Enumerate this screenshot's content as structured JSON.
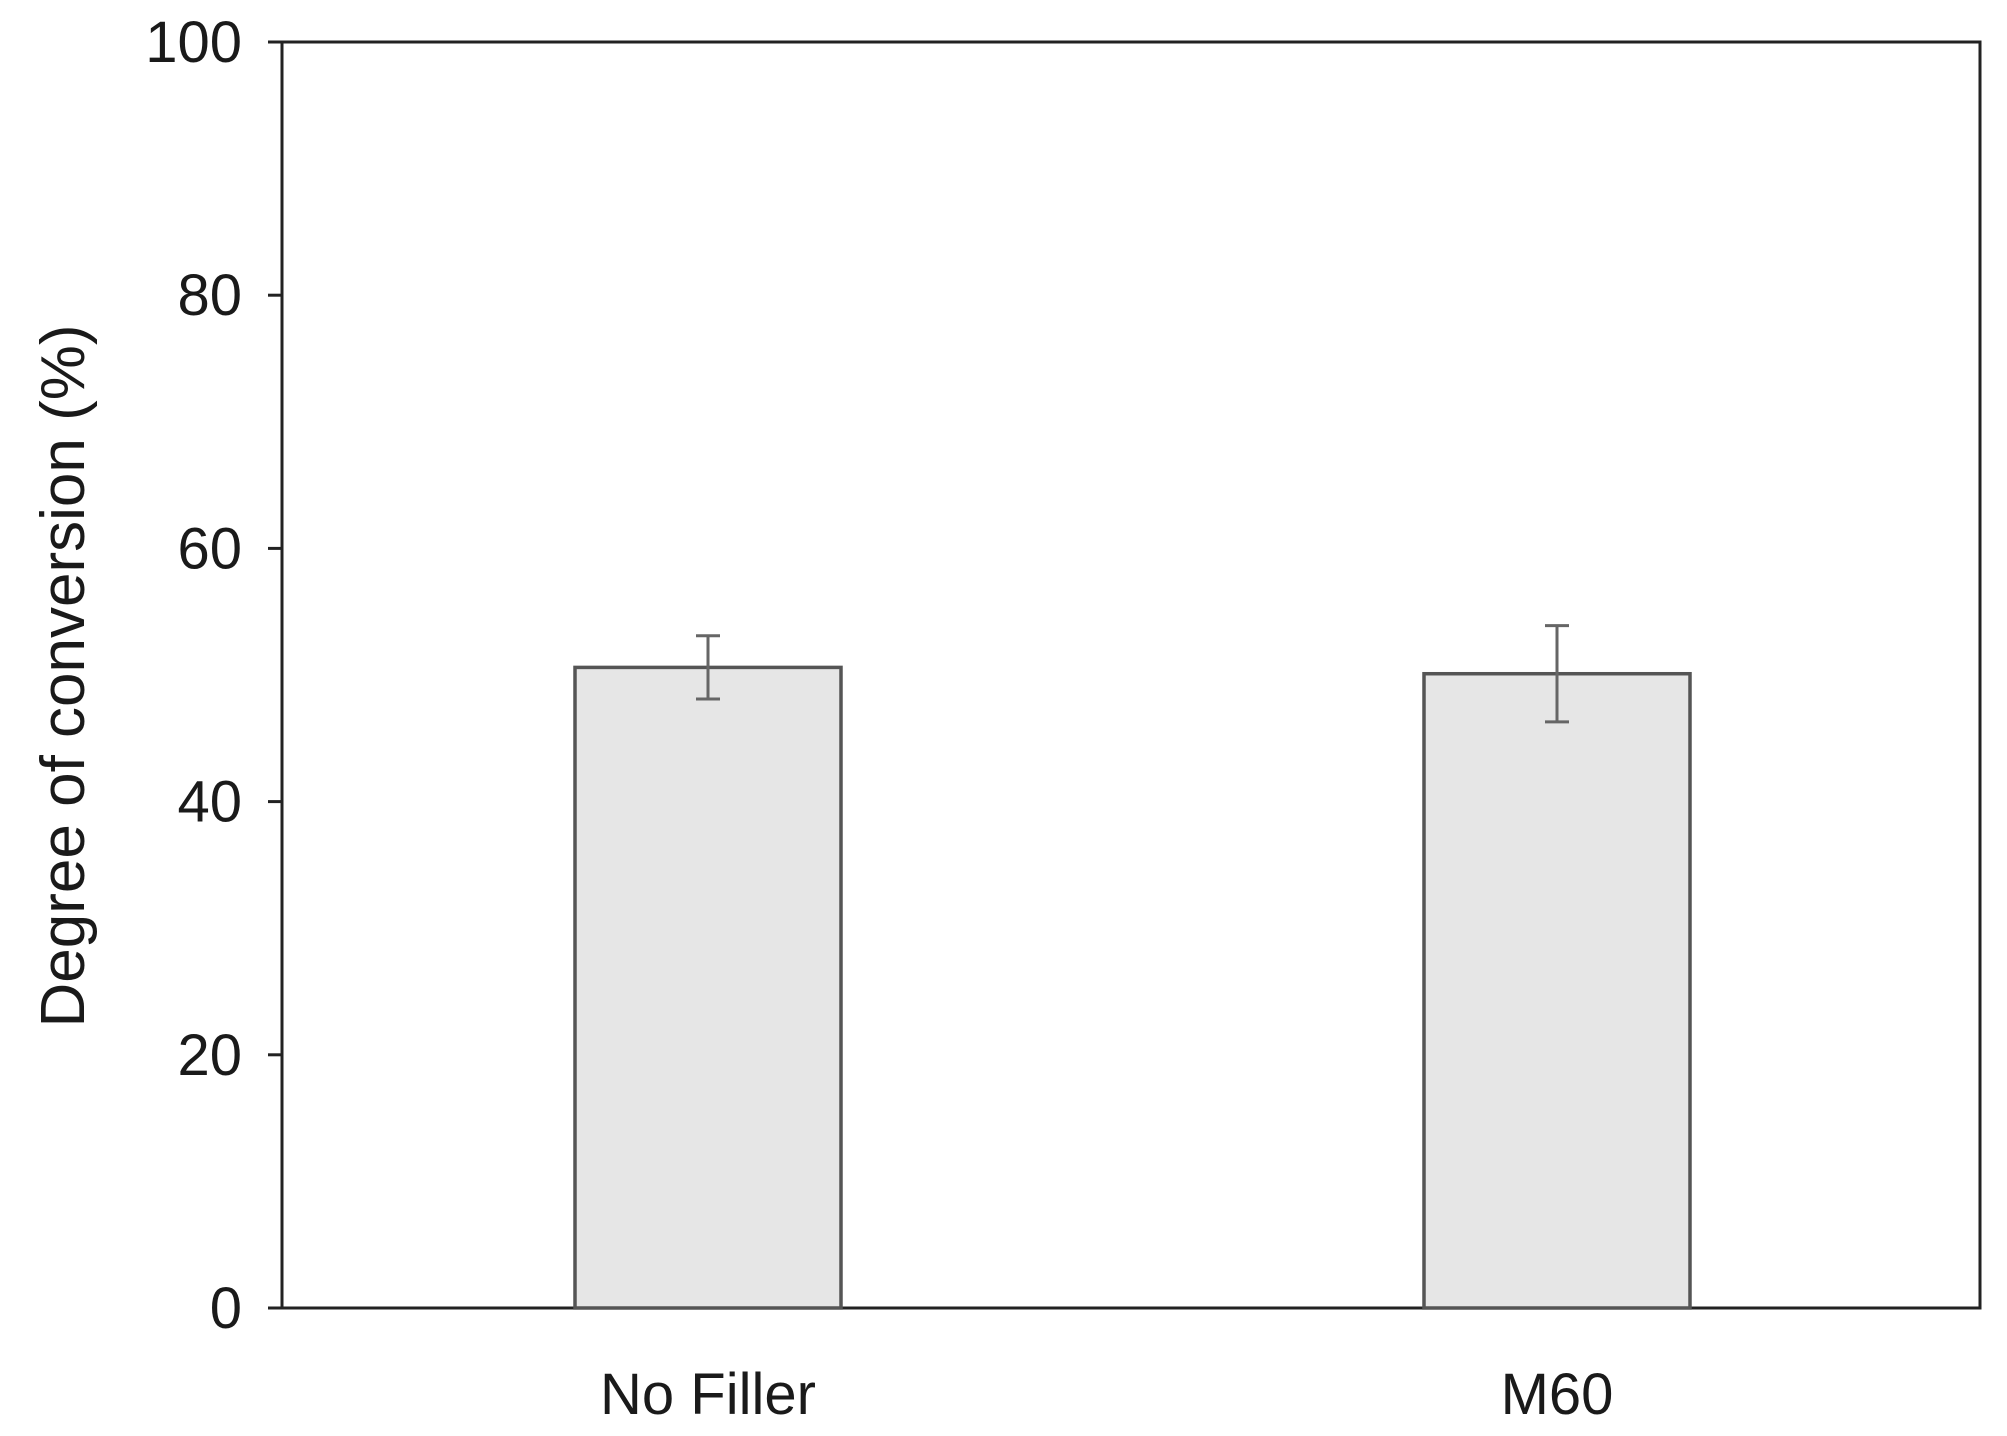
{
  "chart_data": {
    "type": "bar",
    "title": "",
    "xlabel": "",
    "ylabel": "Degree of conversion (%)",
    "ylim": [
      0,
      100
    ],
    "yticks": [
      0,
      20,
      40,
      60,
      80,
      100
    ],
    "categories": [
      "No Filler",
      "M60"
    ],
    "values": [
      50.6,
      50.1
    ],
    "error": [
      2.5,
      3.8
    ],
    "grid": false,
    "legend": "none",
    "colors": {
      "bar_fill": "#e6e6e6",
      "bar_stroke": "#555555",
      "axis": "#222222",
      "error_bar": "#666666"
    }
  }
}
